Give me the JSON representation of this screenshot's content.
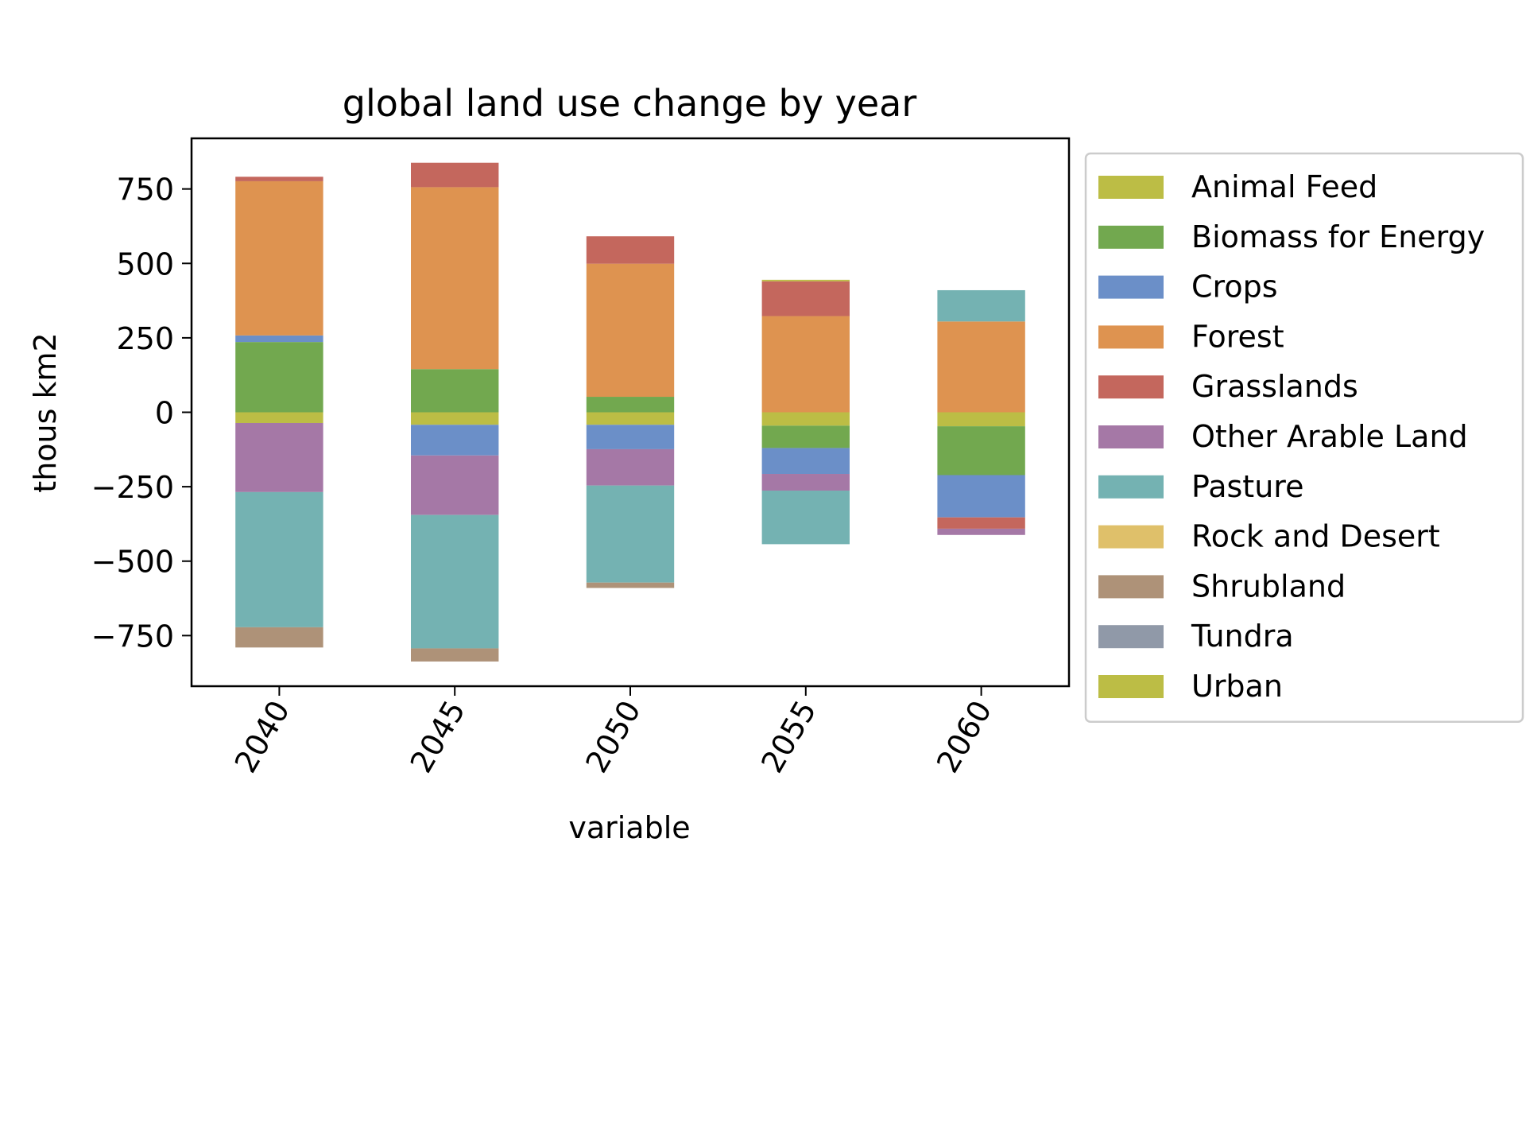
{
  "chart_data": {
    "type": "bar",
    "stacked": true,
    "title": "global land use change by year",
    "xlabel": "variable",
    "ylabel": "thous km2",
    "categories": [
      "2040",
      "2045",
      "2050",
      "2055",
      "2060"
    ],
    "ylim": [
      -920,
      920
    ],
    "yticks": [
      -750,
      -500,
      -250,
      0,
      250,
      500,
      750
    ],
    "ytick_labels": [
      "−750",
      "−500",
      "−250",
      "0",
      "250",
      "500",
      "750"
    ],
    "legend_position": "outside right",
    "grid": false,
    "series": [
      {
        "name": "Animal Feed",
        "color": "#bcbd45",
        "values": [
          -36,
          -42,
          -42,
          -45,
          -47
        ]
      },
      {
        "name": "Biomass for Energy",
        "color": "#72a84f",
        "values": [
          236,
          145,
          52,
          -75,
          -164
        ]
      },
      {
        "name": "Crops",
        "color": "#6b8fc8",
        "values": [
          22,
          -103,
          -82,
          -87,
          -142
        ]
      },
      {
        "name": "Forest",
        "color": "#de9350",
        "values": [
          518,
          611,
          447,
          323,
          305
        ]
      },
      {
        "name": "Grasslands",
        "color": "#c4675d",
        "values": [
          15,
          82,
          92,
          117,
          -38
        ]
      },
      {
        "name": "Other Arable Land",
        "color": "#a578a6",
        "values": [
          -232,
          -200,
          -122,
          -56,
          -21
        ]
      },
      {
        "name": "Pasture",
        "color": "#74b2b2",
        "values": [
          -454,
          -448,
          -326,
          -180,
          105
        ]
      },
      {
        "name": "Rock and Desert",
        "color": "#dfc06a",
        "values": [
          0,
          0,
          0,
          0,
          0
        ]
      },
      {
        "name": "Shrubland",
        "color": "#ae9278",
        "values": [
          -68,
          -44,
          -18,
          0,
          0
        ]
      },
      {
        "name": "Tundra",
        "color": "#9099a8",
        "values": [
          0,
          0,
          0,
          0,
          0
        ]
      },
      {
        "name": "Urban",
        "color": "#bcbd45",
        "values": [
          0,
          0,
          0,
          5,
          0
        ]
      }
    ]
  }
}
